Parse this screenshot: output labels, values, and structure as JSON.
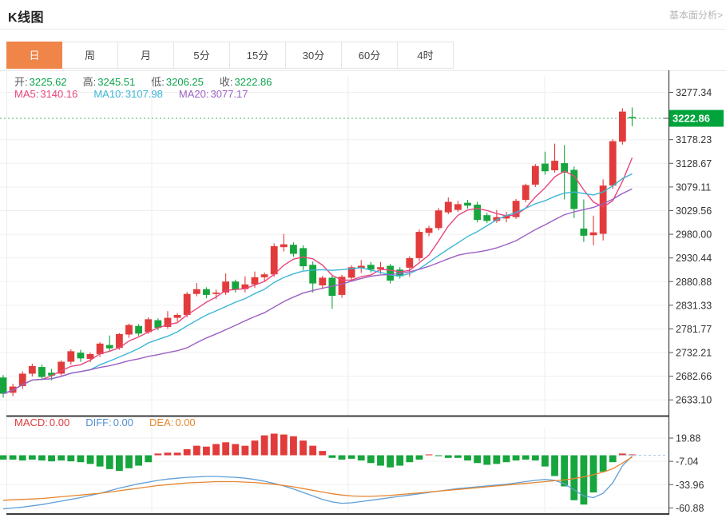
{
  "header": {
    "title": "K线图",
    "link_label": "基本面分析>"
  },
  "tabs": {
    "items": [
      "日",
      "周",
      "月",
      "5分",
      "15分",
      "30分",
      "60分",
      "4时"
    ],
    "active_index": 0,
    "active_color": "#f0854a"
  },
  "ohlc": {
    "items": [
      {
        "label": "开:",
        "value": "3225.62"
      },
      {
        "label": "高:",
        "value": "3245.51"
      },
      {
        "label": "低:",
        "value": "3206.25"
      },
      {
        "label": "收:",
        "value": "3222.86"
      }
    ],
    "label_color": "#5a5a5a",
    "value_color": "#0da24c"
  },
  "ma_legend": {
    "items": [
      {
        "label": "MA5:",
        "value": "3140.16",
        "color": "#e8467c"
      },
      {
        "label": "MA10:",
        "value": "3107.98",
        "color": "#3bb6d5"
      },
      {
        "label": "MA20:",
        "value": "3077.17",
        "color": "#9d5fc4"
      }
    ]
  },
  "macd_legend": {
    "items": [
      {
        "label": "MACD:",
        "value": "0.00",
        "color": "#dd3b3b"
      },
      {
        "label": "DIFF:",
        "value": "0.00",
        "color": "#5390d0"
      },
      {
        "label": "DEA:",
        "value": "0.00",
        "color": "#e8872f"
      }
    ]
  },
  "price_tag": {
    "value": "3222.86",
    "bg": "#00a43b"
  },
  "chart_data": {
    "type": "candlestick+macd",
    "main": {
      "title": "K线图 (daily)",
      "ylim": [
        2600,
        3310
      ],
      "y_ticks": [
        "3277.34",
        "3178.23",
        "3128.67",
        "3079.11",
        "3029.56",
        "2980.00",
        "2930.44",
        "2880.88",
        "2831.33",
        "2781.77",
        "2732.21",
        "2682.66",
        "2633.10"
      ],
      "last_price": 3222.86,
      "last_price_line_color": "#42b86a",
      "up_color": "#e23b3b",
      "down_color": "#17a53e",
      "ma": [
        {
          "period": 5,
          "color": "#e8467c"
        },
        {
          "period": 10,
          "color": "#3bb6d5"
        },
        {
          "period": 20,
          "color": "#9d5fc4"
        }
      ],
      "ohlc": [
        [
          2680,
          2685,
          2638,
          2646
        ],
        [
          2648,
          2667,
          2641,
          2661
        ],
        [
          2662,
          2693,
          2656,
          2688
        ],
        [
          2688,
          2709,
          2682,
          2704
        ],
        [
          2702,
          2707,
          2675,
          2681
        ],
        [
          2690,
          2698,
          2674,
          2684
        ],
        [
          2688,
          2716,
          2684,
          2713
        ],
        [
          2713,
          2739,
          2707,
          2735
        ],
        [
          2732,
          2738,
          2713,
          2720
        ],
        [
          2719,
          2732,
          2712,
          2729
        ],
        [
          2729,
          2754,
          2723,
          2751
        ],
        [
          2748,
          2768,
          2734,
          2741
        ],
        [
          2742,
          2773,
          2738,
          2771
        ],
        [
          2770,
          2793,
          2763,
          2790
        ],
        [
          2788,
          2792,
          2767,
          2772
        ],
        [
          2775,
          2806,
          2771,
          2802
        ],
        [
          2800,
          2804,
          2779,
          2784
        ],
        [
          2786,
          2819,
          2782,
          2805
        ],
        [
          2805,
          2815,
          2797,
          2811
        ],
        [
          2811,
          2859,
          2806,
          2855
        ],
        [
          2855,
          2878,
          2850,
          2865
        ],
        [
          2865,
          2869,
          2846,
          2853
        ],
        [
          2855,
          2864,
          2844,
          2858
        ],
        [
          2858,
          2898,
          2853,
          2881
        ],
        [
          2881,
          2885,
          2858,
          2864
        ],
        [
          2865,
          2892,
          2858,
          2875
        ],
        [
          2875,
          2902,
          2868,
          2890
        ],
        [
          2890,
          2900,
          2882,
          2896
        ],
        [
          2896,
          2961,
          2891,
          2955
        ],
        [
          2953,
          2981,
          2944,
          2959
        ],
        [
          2958,
          2963,
          2933,
          2939
        ],
        [
          2951,
          2957,
          2905,
          2913
        ],
        [
          2916,
          2923,
          2858,
          2877
        ],
        [
          2873,
          2893,
          2865,
          2889
        ],
        [
          2889,
          2894,
          2824,
          2851
        ],
        [
          2853,
          2895,
          2847,
          2891
        ],
        [
          2889,
          2915,
          2883,
          2911
        ],
        [
          2909,
          2926,
          2899,
          2914
        ],
        [
          2916,
          2922,
          2900,
          2906
        ],
        [
          2907,
          2922,
          2897,
          2911
        ],
        [
          2914,
          2918,
          2877,
          2883
        ],
        [
          2906,
          2911,
          2887,
          2892
        ],
        [
          2910,
          2934,
          2891,
          2930
        ],
        [
          2930,
          2990,
          2924,
          2985
        ],
        [
          2983,
          2998,
          2976,
          2993
        ],
        [
          2993,
          3035,
          2988,
          3030
        ],
        [
          3026,
          3057,
          3022,
          3048
        ],
        [
          3031,
          3050,
          3027,
          3043
        ],
        [
          3046,
          3052,
          3034,
          3040
        ],
        [
          3042,
          3048,
          3005,
          3010
        ],
        [
          3020,
          3025,
          3004,
          3008
        ],
        [
          3008,
          3031,
          3004,
          3016
        ],
        [
          3013,
          3027,
          3005,
          3018
        ],
        [
          3016,
          3054,
          3012,
          3050
        ],
        [
          3052,
          3086,
          3047,
          3083
        ],
        [
          3084,
          3127,
          3079,
          3123
        ],
        [
          3128,
          3153,
          3105,
          3112
        ],
        [
          3114,
          3170,
          3109,
          3134
        ],
        [
          3129,
          3167,
          3053,
          3109
        ],
        [
          3115,
          3122,
          3014,
          3033
        ],
        [
          2992,
          3053,
          2964,
          2977
        ],
        [
          2978,
          3019,
          2957,
          2984
        ],
        [
          2981,
          3095,
          2967,
          3082
        ],
        [
          3082,
          3179,
          3075,
          3175
        ],
        [
          3174,
          3244,
          3168,
          3237
        ],
        [
          3225.62,
          3245.51,
          3206.25,
          3222.86
        ]
      ]
    },
    "macd": {
      "ylim": [
        -67,
        31
      ],
      "y_ticks": [
        "19.88",
        "-7.04",
        "-33.96",
        "-60.88"
      ],
      "diff_color": "#5f9fd8",
      "dea_color": "#e8862f",
      "zero_dash_color": "#aac9e8",
      "hist": [
        -5,
        -5,
        -6,
        -5,
        -6,
        -7,
        -6,
        -7,
        -8,
        -10,
        -13,
        -16,
        -18,
        -15,
        -12,
        -8,
        2,
        3,
        3,
        7,
        11,
        10,
        13,
        15,
        13,
        11,
        17,
        23,
        25,
        24,
        22,
        17,
        11,
        5,
        -3,
        -5,
        -4,
        -6,
        -9,
        -12,
        -14,
        -12,
        -8,
        -5,
        1,
        -1,
        -3,
        -3,
        -6,
        -9,
        -11,
        -10,
        -8,
        -6,
        -5,
        -6,
        -13,
        -24,
        -36,
        -52,
        -57,
        -43,
        -19,
        -8,
        2,
        1
      ],
      "diff": [
        -62,
        -61,
        -60,
        -58.5,
        -57,
        -55,
        -53,
        -51,
        -49,
        -46.5,
        -44,
        -41,
        -38,
        -35.5,
        -33,
        -31,
        -29,
        -27.5,
        -26.5,
        -25.5,
        -25,
        -24.5,
        -24.5,
        -25,
        -25.5,
        -26.5,
        -28,
        -30,
        -32.5,
        -35.5,
        -39,
        -43,
        -47,
        -51,
        -54,
        -55.5,
        -55,
        -53.5,
        -52,
        -50.5,
        -49,
        -47.5,
        -46,
        -44.5,
        -43,
        -41.5,
        -40,
        -38.5,
        -37.5,
        -36.5,
        -35.5,
        -34.5,
        -33.5,
        -32,
        -30.5,
        -29,
        -28,
        -29,
        -33,
        -40,
        -47,
        -49,
        -44,
        -32,
        -12,
        -1
      ],
      "dea": [
        -52,
        -51.5,
        -51,
        -50.5,
        -50,
        -49,
        -48,
        -47,
        -46,
        -45,
        -44,
        -42.5,
        -41,
        -39.5,
        -38,
        -36.5,
        -35,
        -34,
        -33,
        -32,
        -31.5,
        -31,
        -30.5,
        -30.5,
        -30.5,
        -31,
        -31.5,
        -32.5,
        -33.5,
        -35,
        -36.5,
        -38.5,
        -40.5,
        -42.5,
        -44.5,
        -46,
        -47,
        -47.5,
        -47.5,
        -47,
        -46.5,
        -45.5,
        -44.5,
        -43.5,
        -42.5,
        -41.5,
        -40.5,
        -39.5,
        -38.5,
        -37.5,
        -36.5,
        -35.5,
        -34.5,
        -33.5,
        -32.5,
        -31.5,
        -30.5,
        -29.5,
        -28.5,
        -27,
        -25,
        -22.5,
        -19.5,
        -15.5,
        -9,
        -2
      ]
    }
  }
}
